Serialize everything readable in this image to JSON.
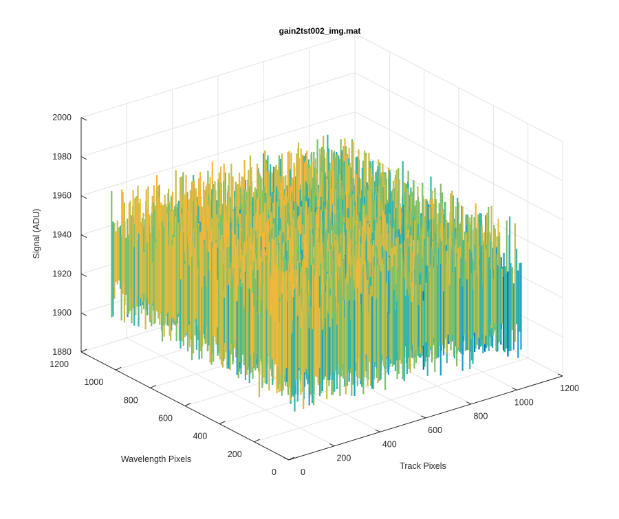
{
  "chart_data": {
    "type": "surface",
    "title": "gain2tst002_img.mat",
    "xlabel": "Track Pixels",
    "ylabel": "Wavelength Pixels",
    "zlabel": "Signal (ADU)",
    "xlim": [
      0,
      1200
    ],
    "ylim": [
      0,
      1200
    ],
    "zlim": [
      1880,
      2000
    ],
    "x_ticks": [
      "0",
      "200",
      "400",
      "600",
      "800",
      "1000",
      "1200"
    ],
    "y_ticks": [
      "0",
      "200",
      "400",
      "600",
      "800",
      "1000",
      "1200"
    ],
    "z_ticks": [
      "1880",
      "1900",
      "1920",
      "1940",
      "1960",
      "1980",
      "2000"
    ],
    "grid": true,
    "colormap": [
      "#0072bd",
      "#1a9ec8",
      "#35b5a8",
      "#7fbf6a",
      "#c9bd4a",
      "#f0b83a"
    ],
    "surface": {
      "x_extent": [
        0,
        1024
      ],
      "y_extent": [
        0,
        1024
      ],
      "mean_level": 1930,
      "min": 1885,
      "max": 1985,
      "notes": "noisy surface; higher (yellow) near low track pixels, lower (blue) toward high track pixels"
    }
  }
}
